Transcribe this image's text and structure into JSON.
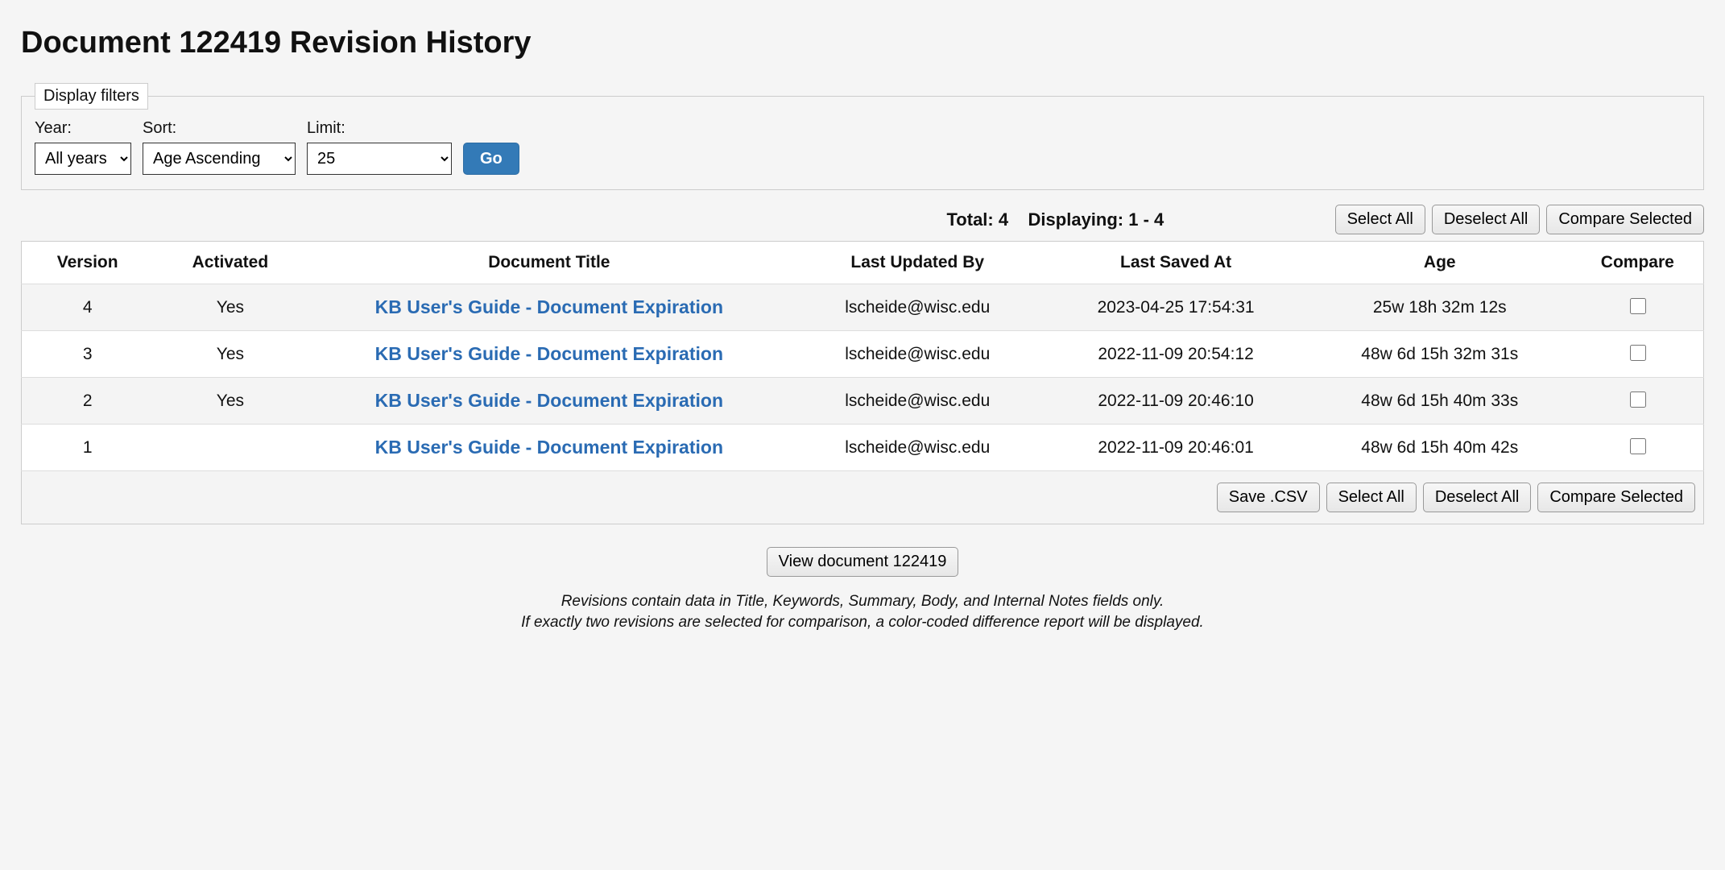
{
  "page_title": "Document 122419 Revision History",
  "filters": {
    "legend": "Display filters",
    "year_label": "Year:",
    "year_value": "All years",
    "sort_label": "Sort:",
    "sort_value": "Age Ascending",
    "limit_label": "Limit:",
    "limit_value": "25",
    "go_label": "Go"
  },
  "summary": {
    "total_label": "Total: 4",
    "displaying_label": "Displaying: 1 - 4"
  },
  "buttons": {
    "select_all": "Select All",
    "deselect_all": "Deselect All",
    "compare_selected": "Compare Selected",
    "save_csv": "Save .CSV",
    "view_document": "View document 122419"
  },
  "table": {
    "headers": {
      "version": "Version",
      "activated": "Activated",
      "title": "Document Title",
      "updated_by": "Last Updated By",
      "saved_at": "Last Saved At",
      "age": "Age",
      "compare": "Compare"
    },
    "rows": [
      {
        "version": "4",
        "activated": "Yes",
        "title": "KB User's Guide - Document Expiration",
        "updated_by": "lscheide@wisc.edu",
        "saved_at": "2023-04-25 17:54:31",
        "age": "25w 18h 32m 12s"
      },
      {
        "version": "3",
        "activated": "Yes",
        "title": "KB User's Guide - Document Expiration",
        "updated_by": "lscheide@wisc.edu",
        "saved_at": "2022-11-09 20:54:12",
        "age": "48w 6d 15h 32m 31s"
      },
      {
        "version": "2",
        "activated": "Yes",
        "title": "KB User's Guide - Document Expiration",
        "updated_by": "lscheide@wisc.edu",
        "saved_at": "2022-11-09 20:46:10",
        "age": "48w 6d 15h 40m 33s"
      },
      {
        "version": "1",
        "activated": "",
        "title": "KB User's Guide - Document Expiration",
        "updated_by": "lscheide@wisc.edu",
        "saved_at": "2022-11-09 20:46:01",
        "age": "48w 6d 15h 40m 42s"
      }
    ]
  },
  "notes": {
    "line1": "Revisions contain data in Title, Keywords, Summary, Body, and Internal Notes fields only.",
    "line2": "If exactly two revisions are selected for comparison, a color-coded difference report will be displayed."
  }
}
